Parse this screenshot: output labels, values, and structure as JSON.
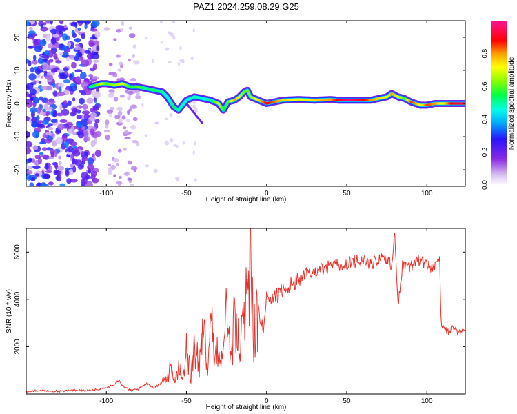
{
  "title": "PAZ1.2024.259.08.29.G25",
  "chart_data": [
    {
      "type": "heatmap",
      "xlabel": "Height of straight line (km)",
      "ylabel": "Frequency (Hz)",
      "xlim": [
        -150,
        124
      ],
      "ylim": [
        -25,
        25
      ],
      "xticks": [
        -100,
        -50,
        0,
        50,
        100
      ],
      "yticks": [
        -20,
        -10,
        0,
        10,
        20
      ],
      "colorbar": {
        "label": "Normalized spectral amplitude",
        "ticks": [
          "0.0",
          "0.2",
          "0.4",
          "0.6",
          "0.8"
        ],
        "range": [
          0,
          1
        ],
        "colors": [
          "#ffffff",
          "#d9c4f2",
          "#8a2be2",
          "#0000ff",
          "#00bfff",
          "#00ffff",
          "#00ff40",
          "#80ff00",
          "#ffff00",
          "#ffa500",
          "#ff0000",
          "#ff1493"
        ]
      },
      "ridge": {
        "x": [
          -110,
          -103,
          -100,
          -95,
          -90,
          -85,
          -80,
          -75,
          -70,
          -65,
          -62,
          -58,
          -55,
          -50,
          -45,
          -40,
          -35,
          -30,
          -27,
          -24,
          -20,
          -17,
          -14,
          -12,
          -10,
          -5,
          0,
          10,
          20,
          30,
          40,
          45,
          50,
          55,
          60,
          65,
          70,
          75,
          78,
          82,
          86,
          90,
          93,
          96,
          100,
          105,
          110,
          115,
          124
        ],
        "freq": [
          5,
          6,
          6,
          5.5,
          6,
          5,
          5,
          4.5,
          4,
          3.5,
          2,
          -1,
          -2,
          1,
          2,
          1.5,
          1,
          0,
          -2,
          0.5,
          1,
          2,
          3.5,
          4,
          2,
          1,
          0,
          1,
          1.2,
          1,
          1.2,
          1,
          1,
          1,
          1,
          1,
          1.5,
          2,
          3,
          2,
          1.5,
          0.5,
          0,
          -0.5,
          -0.5,
          0,
          0,
          0,
          0
        ],
        "amp": [
          0.5,
          0.7,
          0.6,
          0.65,
          0.7,
          0.55,
          0.6,
          0.5,
          0.55,
          0.5,
          0.45,
          0.55,
          0.5,
          0.45,
          0.5,
          0.45,
          0.5,
          0.7,
          0.55,
          0.6,
          0.8,
          0.7,
          0.6,
          0.6,
          0.65,
          0.75,
          0.9,
          0.75,
          0.7,
          0.75,
          0.8,
          0.9,
          0.97,
          0.95,
          0.9,
          0.8,
          0.75,
          0.7,
          0.8,
          0.7,
          0.6,
          0.85,
          0.8,
          0.7,
          0.85,
          0.8,
          0.7,
          0.9,
          0.95
        ]
      }
    },
    {
      "type": "line",
      "xlabel": "Height of straight line (km)",
      "ylabel": "SNR (10 * v/v)",
      "xlim": [
        -150,
        124
      ],
      "ylim": [
        0,
        7000
      ],
      "xticks": [
        -100,
        -50,
        0,
        50,
        100
      ],
      "yticks": [
        2000,
        4000,
        6000
      ],
      "color": "#e8312a",
      "series": [
        {
          "x": [
            -150,
            -140,
            -130,
            -120,
            -110,
            -100,
            -95,
            -92,
            -90,
            -85,
            -80,
            -75,
            -70,
            -65,
            -60,
            -58,
            -55,
            -52,
            -50,
            -47,
            -45,
            -42,
            -40,
            -37,
            -35,
            -32,
            -30,
            -27,
            -25,
            -22,
            -20,
            -17,
            -15,
            -12,
            -10,
            -8,
            -5,
            -2,
            0,
            5,
            10,
            15,
            20,
            25,
            30,
            35,
            40,
            45,
            50,
            55,
            60,
            65,
            70,
            75,
            78,
            80,
            82,
            85,
            90,
            95,
            100,
            105,
            108,
            109,
            110,
            113,
            116,
            120,
            124
          ],
          "y": [
            100,
            150,
            120,
            150,
            160,
            250,
            400,
            600,
            350,
            150,
            200,
            450,
            250,
            500,
            900,
            600,
            1000,
            700,
            1800,
            800,
            2300,
            900,
            2600,
            1500,
            3000,
            1300,
            2800,
            1200,
            3500,
            1500,
            3900,
            1800,
            2600,
            4200,
            5700,
            2900,
            3300,
            2700,
            4000,
            4100,
            4400,
            4600,
            4800,
            5100,
            5200,
            5300,
            5400,
            5450,
            5500,
            5600,
            5650,
            5500,
            5700,
            5750,
            5400,
            6900,
            3800,
            5500,
            5400,
            5600,
            5500,
            5300,
            5700,
            2800,
            2800,
            2600,
            2800,
            2600,
            2700
          ]
        }
      ]
    }
  ]
}
